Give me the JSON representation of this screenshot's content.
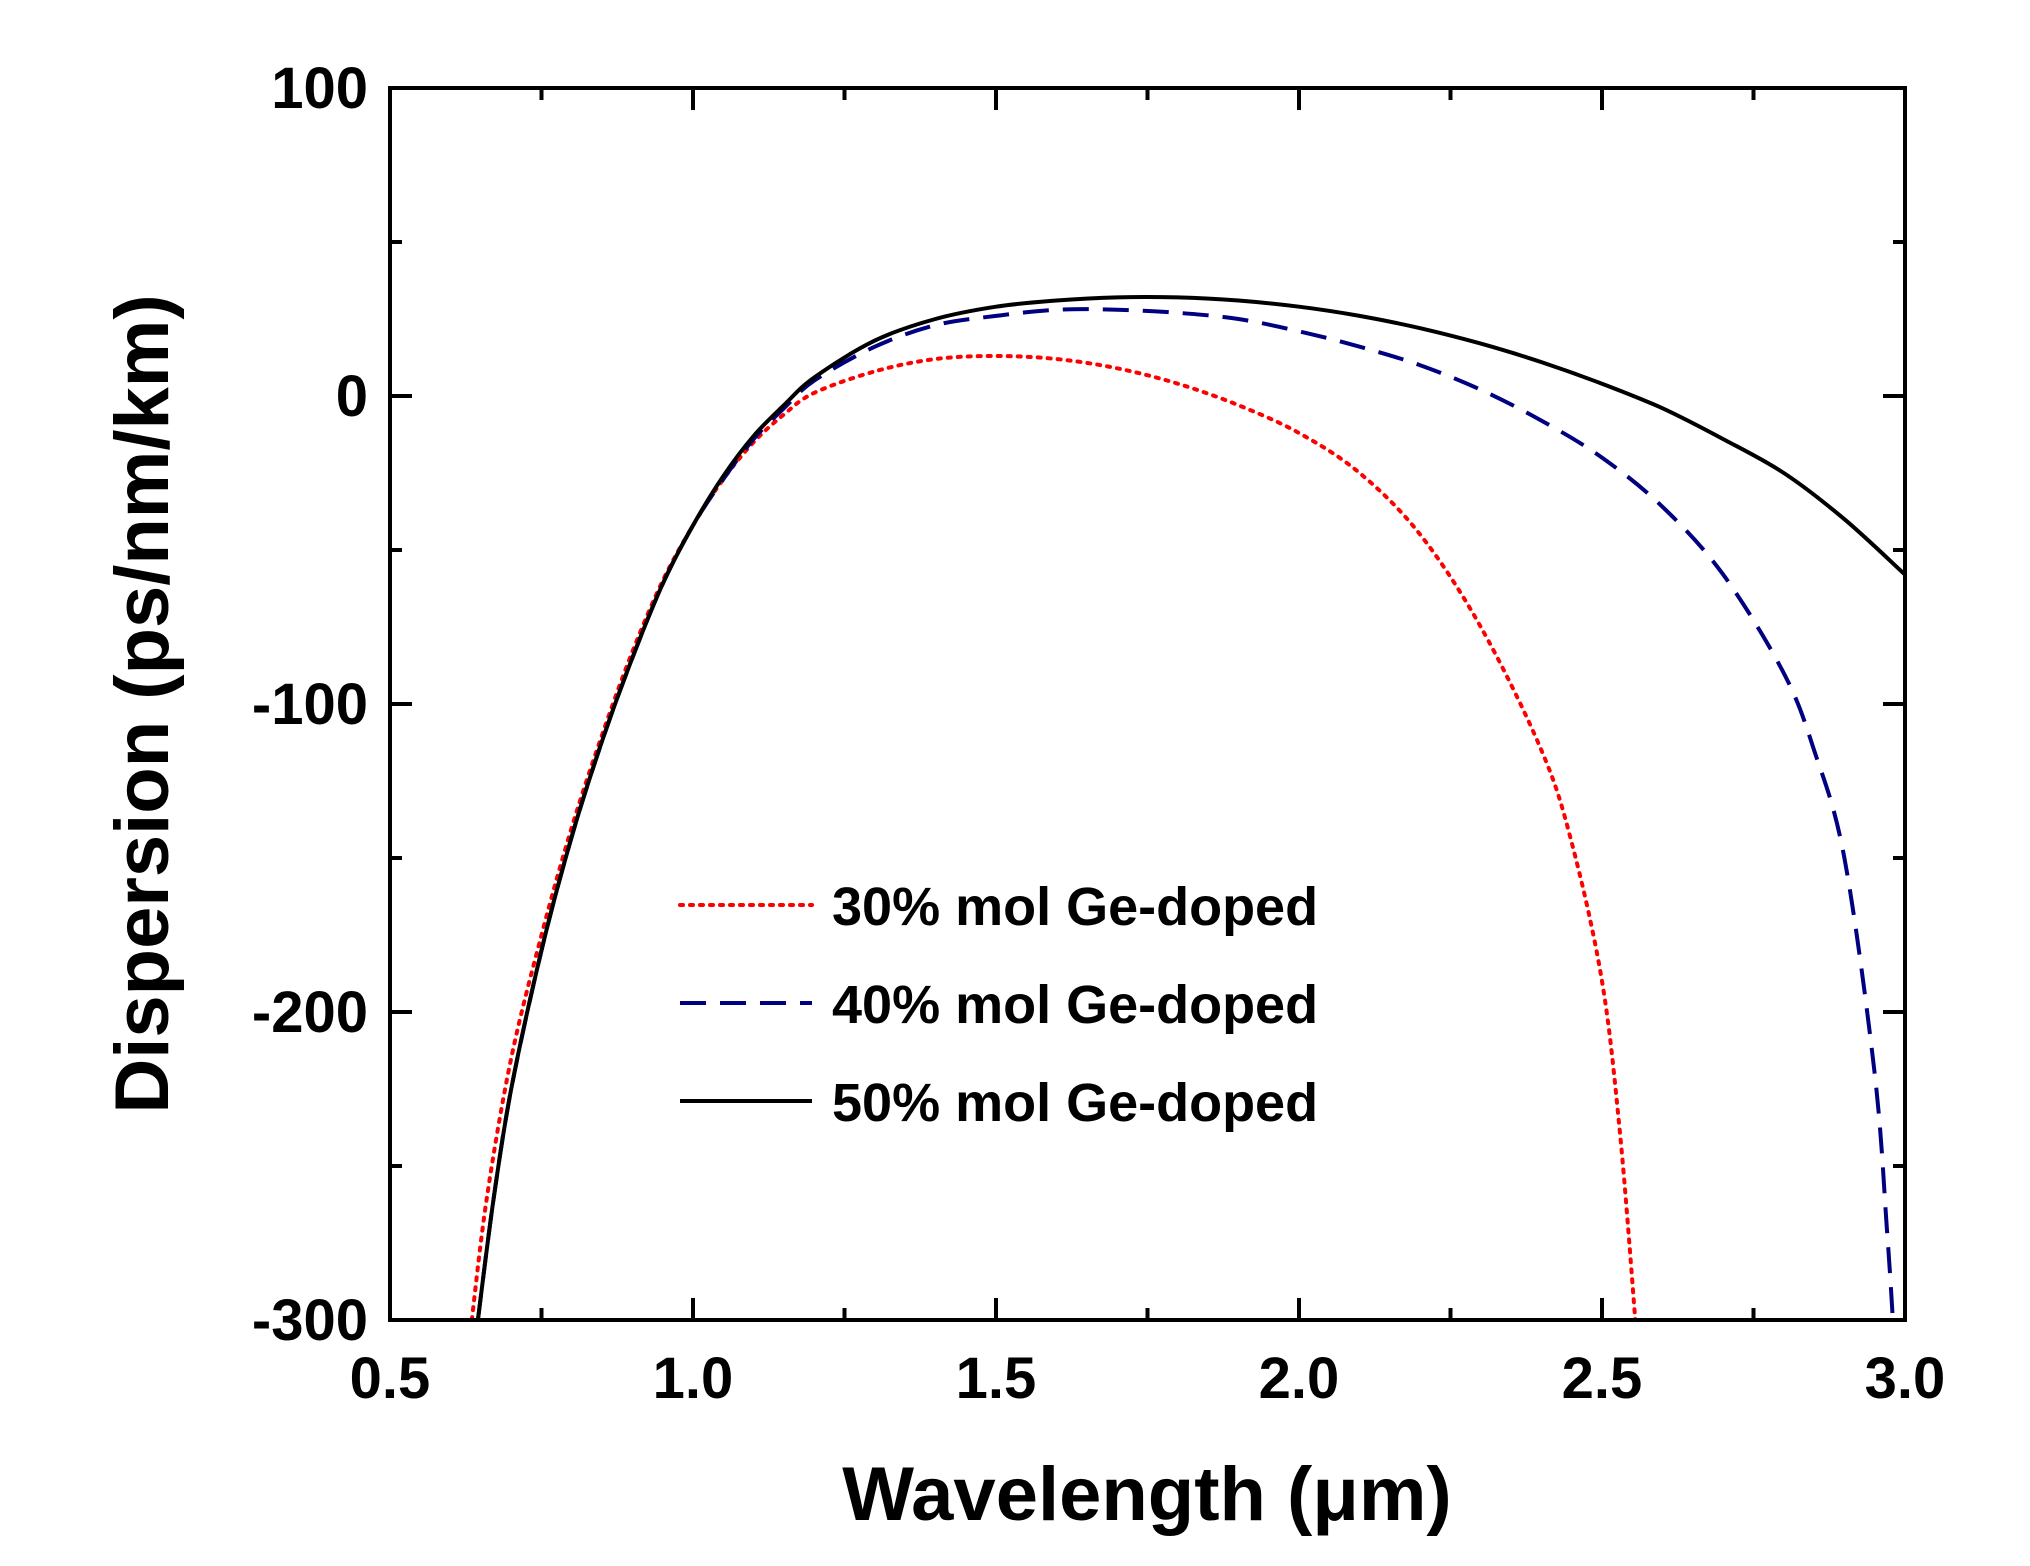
{
  "chart_data": {
    "type": "line",
    "xlabel": "Wavelength (μm)",
    "ylabel": "Dispersion (ps/nm/km)",
    "xlim": [
      0.5,
      3.0
    ],
    "ylim": [
      -300,
      100
    ],
    "xticks": [
      0.5,
      1.0,
      1.5,
      2.0,
      2.5,
      3.0
    ],
    "xtick_labels": [
      "0.5",
      "1.0",
      "1.5",
      "2.0",
      "2.5",
      "3.0"
    ],
    "yticks": [
      100,
      0,
      -100,
      -200,
      -300
    ],
    "ytick_labels": [
      "100",
      "0",
      "-100",
      "-200",
      "-300"
    ],
    "grid": false,
    "legend_position": "center",
    "series": [
      {
        "name": "30% mol Ge-doped",
        "color": "#ff0000",
        "style": "dotted",
        "points": [
          [
            0.635,
            -300
          ],
          [
            0.66,
            -260
          ],
          [
            0.7,
            -215
          ],
          [
            0.75,
            -175
          ],
          [
            0.8,
            -140
          ],
          [
            0.85,
            -110
          ],
          [
            0.9,
            -83
          ],
          [
            0.95,
            -60
          ],
          [
            1.0,
            -42
          ],
          [
            1.05,
            -27
          ],
          [
            1.1,
            -15
          ],
          [
            1.15,
            -6
          ],
          [
            1.2,
            1
          ],
          [
            1.3,
            8
          ],
          [
            1.4,
            12
          ],
          [
            1.5,
            13
          ],
          [
            1.6,
            12
          ],
          [
            1.7,
            9
          ],
          [
            1.8,
            4
          ],
          [
            1.9,
            -3
          ],
          [
            2.0,
            -12
          ],
          [
            2.1,
            -25
          ],
          [
            2.2,
            -45
          ],
          [
            2.3,
            -75
          ],
          [
            2.4,
            -115
          ],
          [
            2.45,
            -145
          ],
          [
            2.5,
            -190
          ],
          [
            2.53,
            -240
          ],
          [
            2.555,
            -300
          ]
        ]
      },
      {
        "name": "40% mol Ge-doped",
        "color": "#000080",
        "style": "dashed",
        "points": [
          [
            0.645,
            -300
          ],
          [
            0.67,
            -262
          ],
          [
            0.7,
            -225
          ],
          [
            0.75,
            -180
          ],
          [
            0.8,
            -143
          ],
          [
            0.85,
            -112
          ],
          [
            0.9,
            -85
          ],
          [
            0.95,
            -61
          ],
          [
            1.0,
            -42
          ],
          [
            1.05,
            -27
          ],
          [
            1.1,
            -14
          ],
          [
            1.15,
            -4
          ],
          [
            1.2,
            5
          ],
          [
            1.3,
            16
          ],
          [
            1.4,
            23
          ],
          [
            1.5,
            26
          ],
          [
            1.6,
            28
          ],
          [
            1.7,
            28
          ],
          [
            1.8,
            27
          ],
          [
            1.9,
            25
          ],
          [
            2.0,
            21
          ],
          [
            2.1,
            16
          ],
          [
            2.2,
            10
          ],
          [
            2.3,
            2
          ],
          [
            2.4,
            -8
          ],
          [
            2.5,
            -20
          ],
          [
            2.6,
            -36
          ],
          [
            2.7,
            -58
          ],
          [
            2.8,
            -90
          ],
          [
            2.85,
            -115
          ],
          [
            2.9,
            -150
          ],
          [
            2.95,
            -220
          ],
          [
            2.97,
            -270
          ],
          [
            2.98,
            -300
          ]
        ]
      },
      {
        "name": "50% mol Ge-doped",
        "color": "#000000",
        "style": "solid",
        "points": [
          [
            0.645,
            -300
          ],
          [
            0.67,
            -262
          ],
          [
            0.7,
            -225
          ],
          [
            0.75,
            -180
          ],
          [
            0.8,
            -143
          ],
          [
            0.85,
            -112
          ],
          [
            0.9,
            -85
          ],
          [
            0.95,
            -61
          ],
          [
            1.0,
            -42
          ],
          [
            1.05,
            -26
          ],
          [
            1.1,
            -13
          ],
          [
            1.15,
            -3
          ],
          [
            1.2,
            6
          ],
          [
            1.3,
            18
          ],
          [
            1.4,
            25
          ],
          [
            1.5,
            29
          ],
          [
            1.6,
            31
          ],
          [
            1.7,
            32
          ],
          [
            1.8,
            32
          ],
          [
            1.9,
            31
          ],
          [
            2.0,
            29
          ],
          [
            2.1,
            26
          ],
          [
            2.2,
            22
          ],
          [
            2.3,
            17
          ],
          [
            2.4,
            11
          ],
          [
            2.5,
            4
          ],
          [
            2.6,
            -4
          ],
          [
            2.7,
            -14
          ],
          [
            2.8,
            -25
          ],
          [
            2.9,
            -40
          ],
          [
            3.0,
            -58
          ]
        ]
      }
    ]
  }
}
